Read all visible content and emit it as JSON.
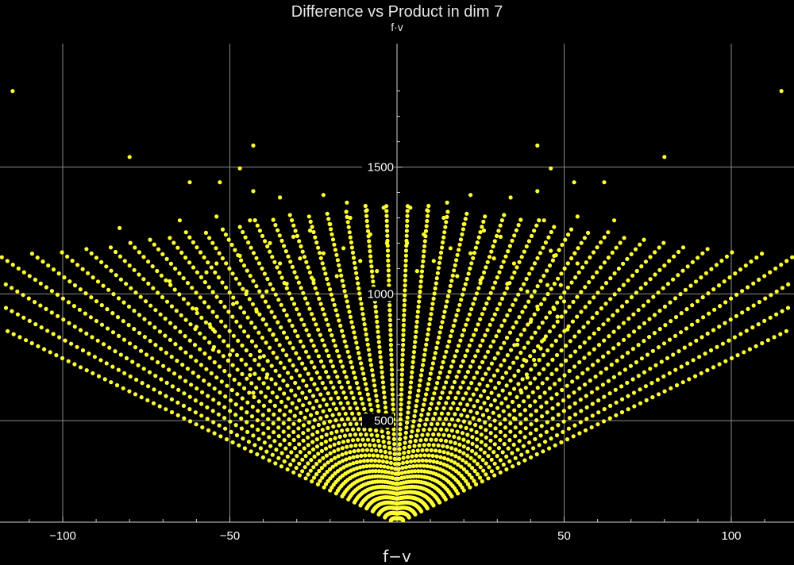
{
  "chart_data": {
    "type": "scatter",
    "title": "Difference vs Product in dim 7",
    "xlabel": "f−v",
    "ylabel": "f·v",
    "xlim": [
      -119,
      119
    ],
    "ylim": [
      0,
      1900
    ],
    "x_ticks": [
      -100,
      -50,
      50,
      100
    ],
    "x_tick_labels": [
      "−100",
      "−50",
      "50",
      "100"
    ],
    "y_ticks": [
      500,
      1000,
      1500
    ],
    "y_tick_labels": [
      "500",
      "1000",
      "1500"
    ],
    "grid": true,
    "background": "#000000",
    "point_color": "#ffff33",
    "grid_color": "#8a8a8a",
    "series": [
      {
        "points": [
          [
            -115,
            1800
          ],
          [
            115,
            1800
          ],
          [
            -80,
            1540
          ],
          [
            80,
            1540
          ],
          [
            -83,
            1260
          ],
          [
            -43,
            1585
          ],
          [
            42,
            1585
          ],
          [
            -47,
            1495
          ],
          [
            46,
            1495
          ],
          [
            -62,
            1440
          ],
          [
            -53,
            1440
          ],
          [
            -43,
            1405
          ],
          [
            -54,
            1120
          ],
          [
            -57,
            1085
          ],
          [
            -68,
            1050
          ],
          [
            -65,
            1290
          ],
          [
            -54,
            1305
          ],
          [
            -44,
            1290
          ],
          [
            -47,
            1150
          ],
          [
            -60,
            940
          ],
          [
            -60,
            870
          ],
          [
            -55,
            860
          ],
          [
            -55,
            780
          ],
          [
            -56,
            880
          ],
          [
            -49,
            960
          ],
          [
            -50,
            760
          ],
          [
            -44,
            680
          ],
          [
            -43,
            610
          ],
          [
            -39,
            670
          ],
          [
            -38,
            1200
          ],
          [
            62,
            1440
          ],
          [
            53,
            1440
          ],
          [
            42,
            1405
          ],
          [
            65,
            1290
          ],
          [
            54,
            1305
          ],
          [
            44,
            1290
          ],
          [
            47,
            1150
          ],
          [
            54,
            1120
          ],
          [
            49,
            1035
          ],
          [
            47,
            940
          ],
          [
            48,
            910
          ],
          [
            51,
            860
          ],
          [
            50,
            970
          ],
          [
            46,
            1170
          ],
          [
            44,
            820
          ],
          [
            38,
            740
          ],
          [
            39,
            670
          ],
          [
            37,
            620
          ],
          [
            35,
            510
          ],
          [
            43,
            785
          ]
        ],
        "wedge": {
          "apex": [
            0,
            95
          ],
          "fan_lines": 46,
          "angle_range_deg": [
            -63,
            63
          ],
          "step": 22,
          "max_y": 1360
        }
      }
    ]
  }
}
